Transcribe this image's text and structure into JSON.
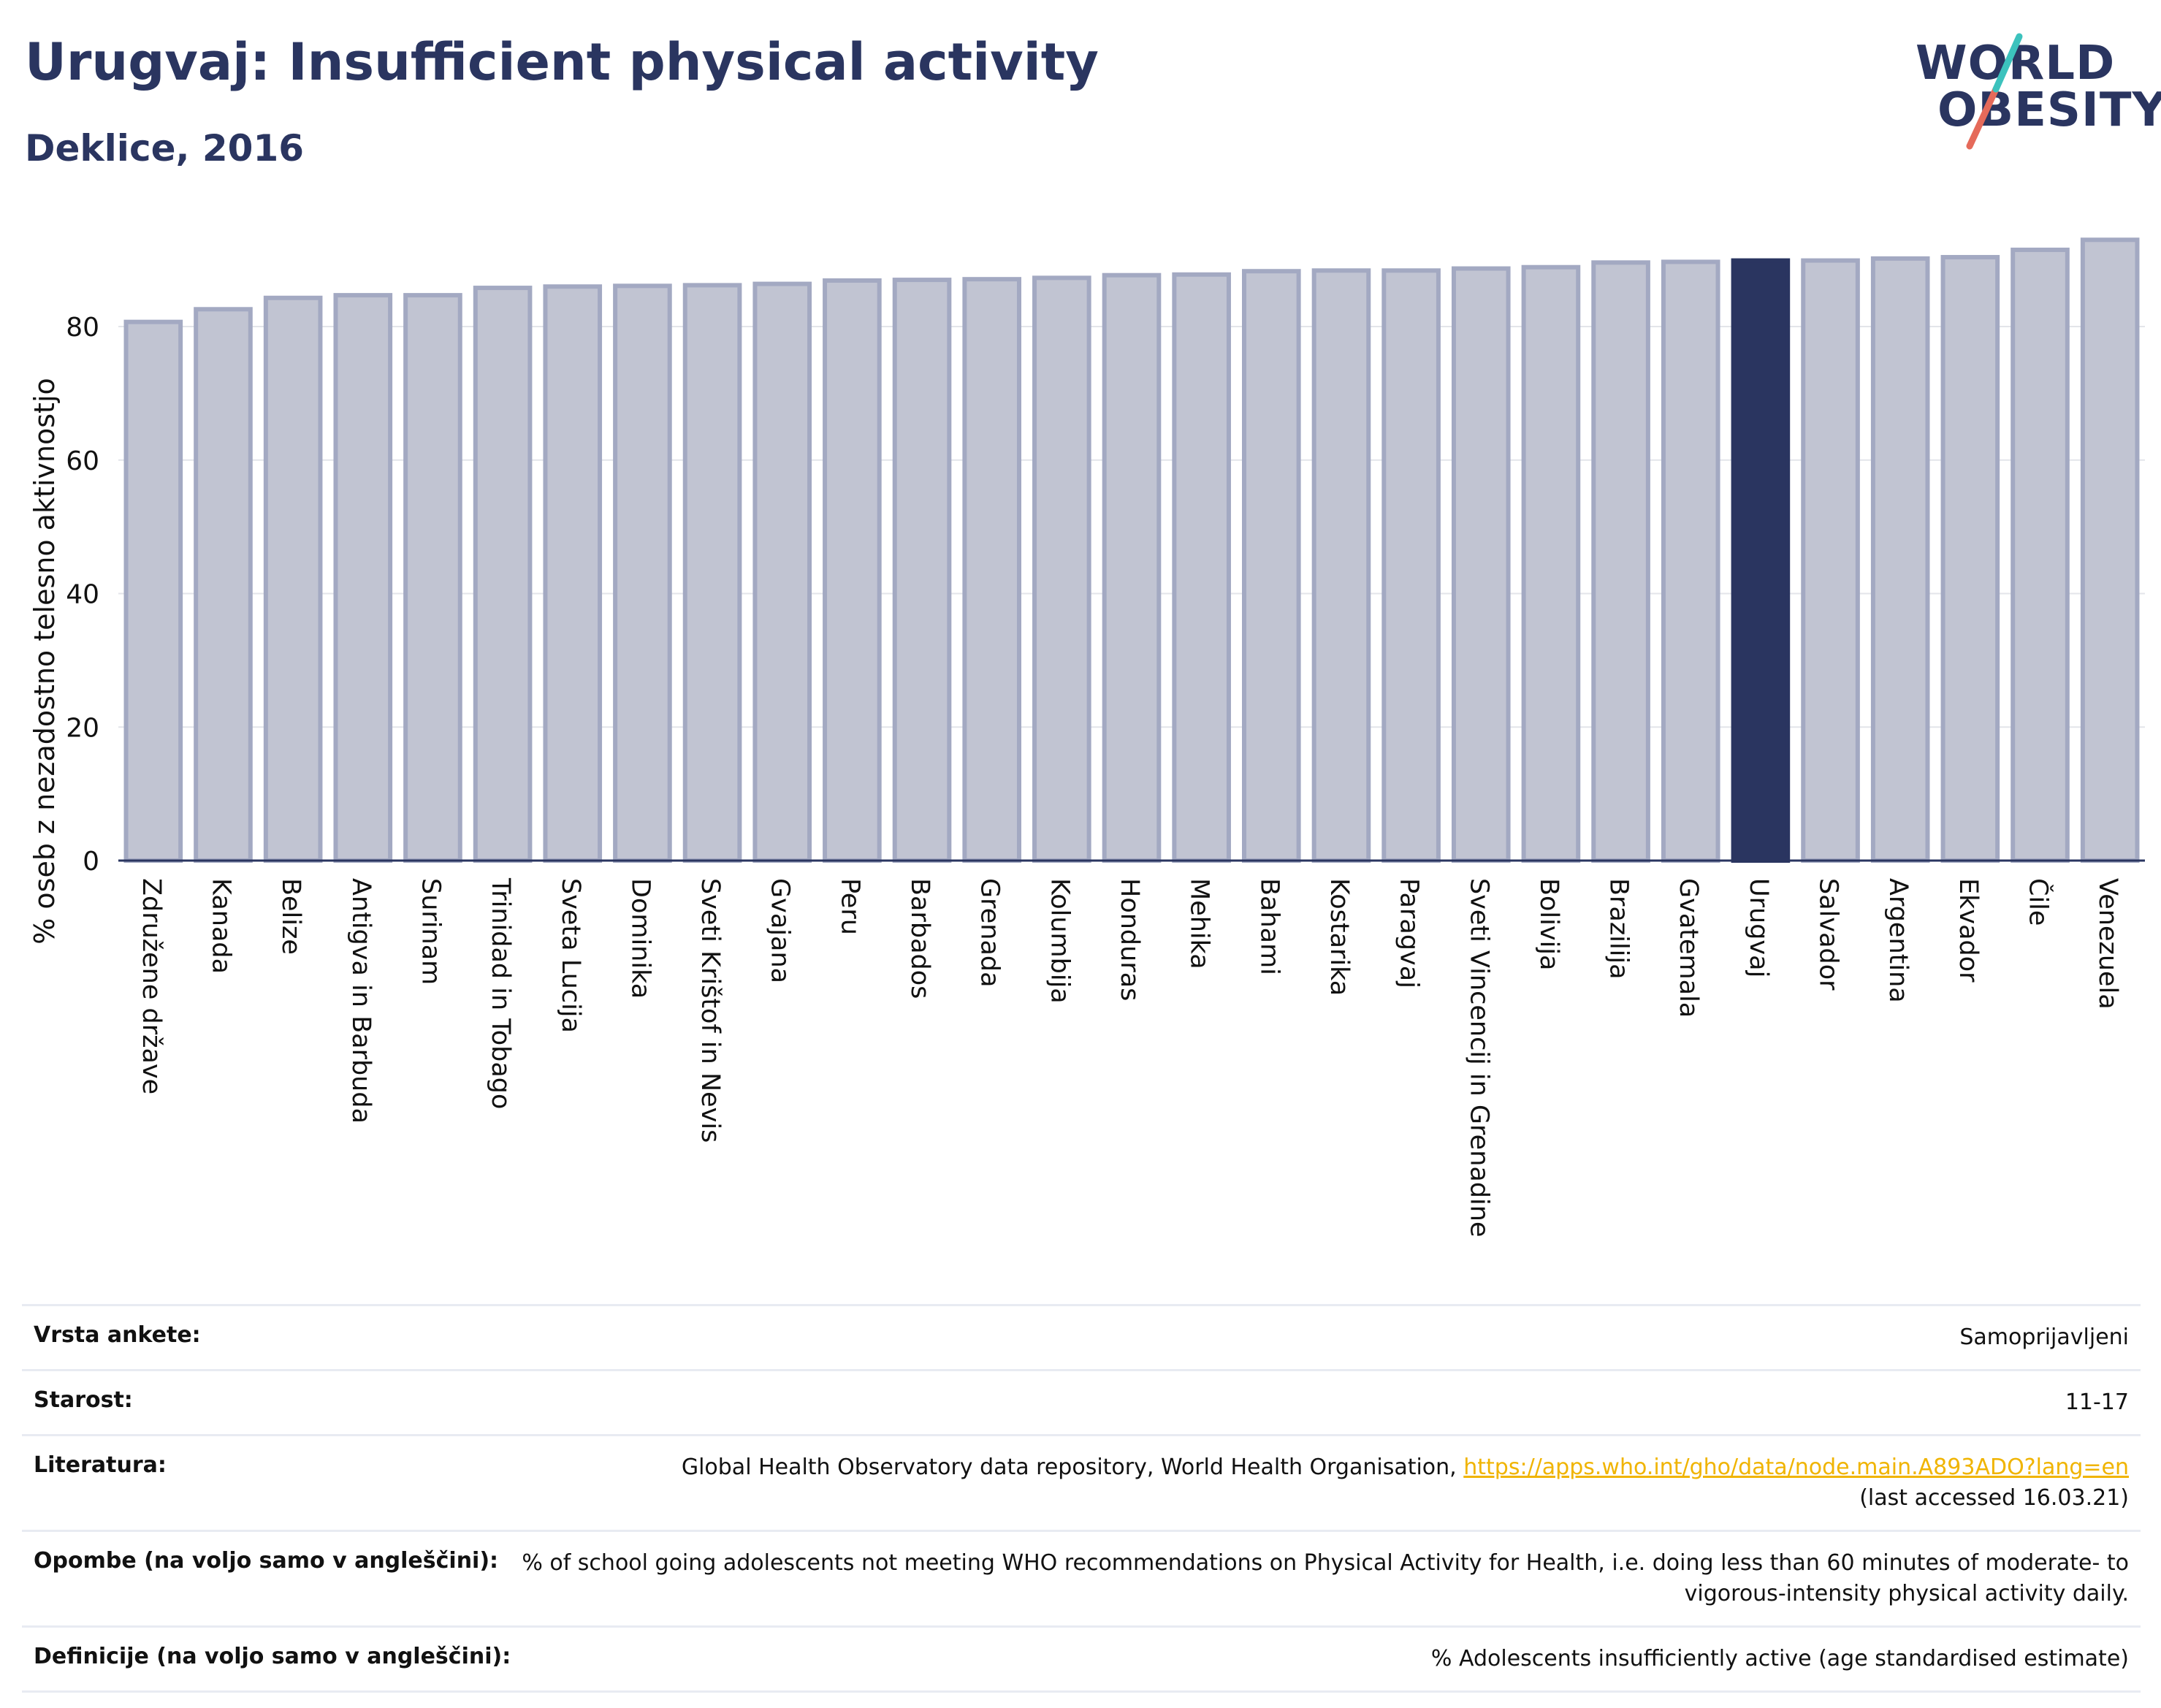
{
  "header": {
    "title": "Urugvaj: Insufficient physical activity",
    "subtitle": "Deklice, 2016"
  },
  "logo": {
    "line1": "WORLD",
    "line2": "OBESITY"
  },
  "colors": {
    "bar": "#c1c4d2",
    "bar_border": "#a3a9c2",
    "highlight": "#2a3560",
    "grid": "#e3e5ea"
  },
  "chart_data": {
    "type": "bar",
    "ylabel": "% oseb z nezadostno telesno aktivnostjo",
    "ylim": [
      0,
      95
    ],
    "yticks": [
      0,
      20,
      40,
      60,
      80
    ],
    "grid": true,
    "highlight": "Urugvaj",
    "categories": [
      "Združene države",
      "Kanada",
      "Belize",
      "Antigva in Barbuda",
      "Surinam",
      "Trinidad in Tobago",
      "Sveta Lucija",
      "Dominika",
      "Sveti Krištof in Nevis",
      "Gvajana",
      "Peru",
      "Barbados",
      "Grenada",
      "Kolumbija",
      "Honduras",
      "Mehika",
      "Bahami",
      "Kostarika",
      "Paragvaj",
      "Sveti Vincencij in Grenadine",
      "Bolivija",
      "Brazilija",
      "Gvatemala",
      "Urugvaj",
      "Salvador",
      "Argentina",
      "Ekvador",
      "Čile",
      "Venezuela"
    ],
    "values": [
      80.7,
      82.6,
      84.3,
      84.7,
      84.7,
      85.8,
      86.0,
      86.1,
      86.2,
      86.4,
      86.9,
      87.0,
      87.1,
      87.3,
      87.7,
      87.8,
      88.3,
      88.4,
      88.4,
      88.7,
      88.9,
      89.6,
      89.7,
      89.9,
      89.9,
      90.2,
      90.4,
      91.5,
      93.0
    ]
  },
  "info": {
    "survey_label": "Vrsta ankete:",
    "survey_value": "Samoprijavljeni",
    "age_label": "Starost:",
    "age_value": "11-17",
    "ref_label": "Literatura:",
    "ref_text": "Global Health Observatory data repository, World Health Organisation,",
    "ref_link": "https://apps.who.int/gho/data/node.main.A893ADO?lang=en",
    "ref_accessed": "(last accessed 16.03.21)",
    "notes_label": "Opombe (na voljo samo v angleščini):",
    "notes_value": "% of school going adolescents not meeting WHO recommendations on Physical Activity for Health, i.e. doing less than 60 minutes of moderate- to vigorous-intensity physical activity daily.",
    "def_label": "Definicije (na voljo samo v angleščini):",
    "def_value": "% Adolescents insufficiently active (age standardised estimate)"
  }
}
